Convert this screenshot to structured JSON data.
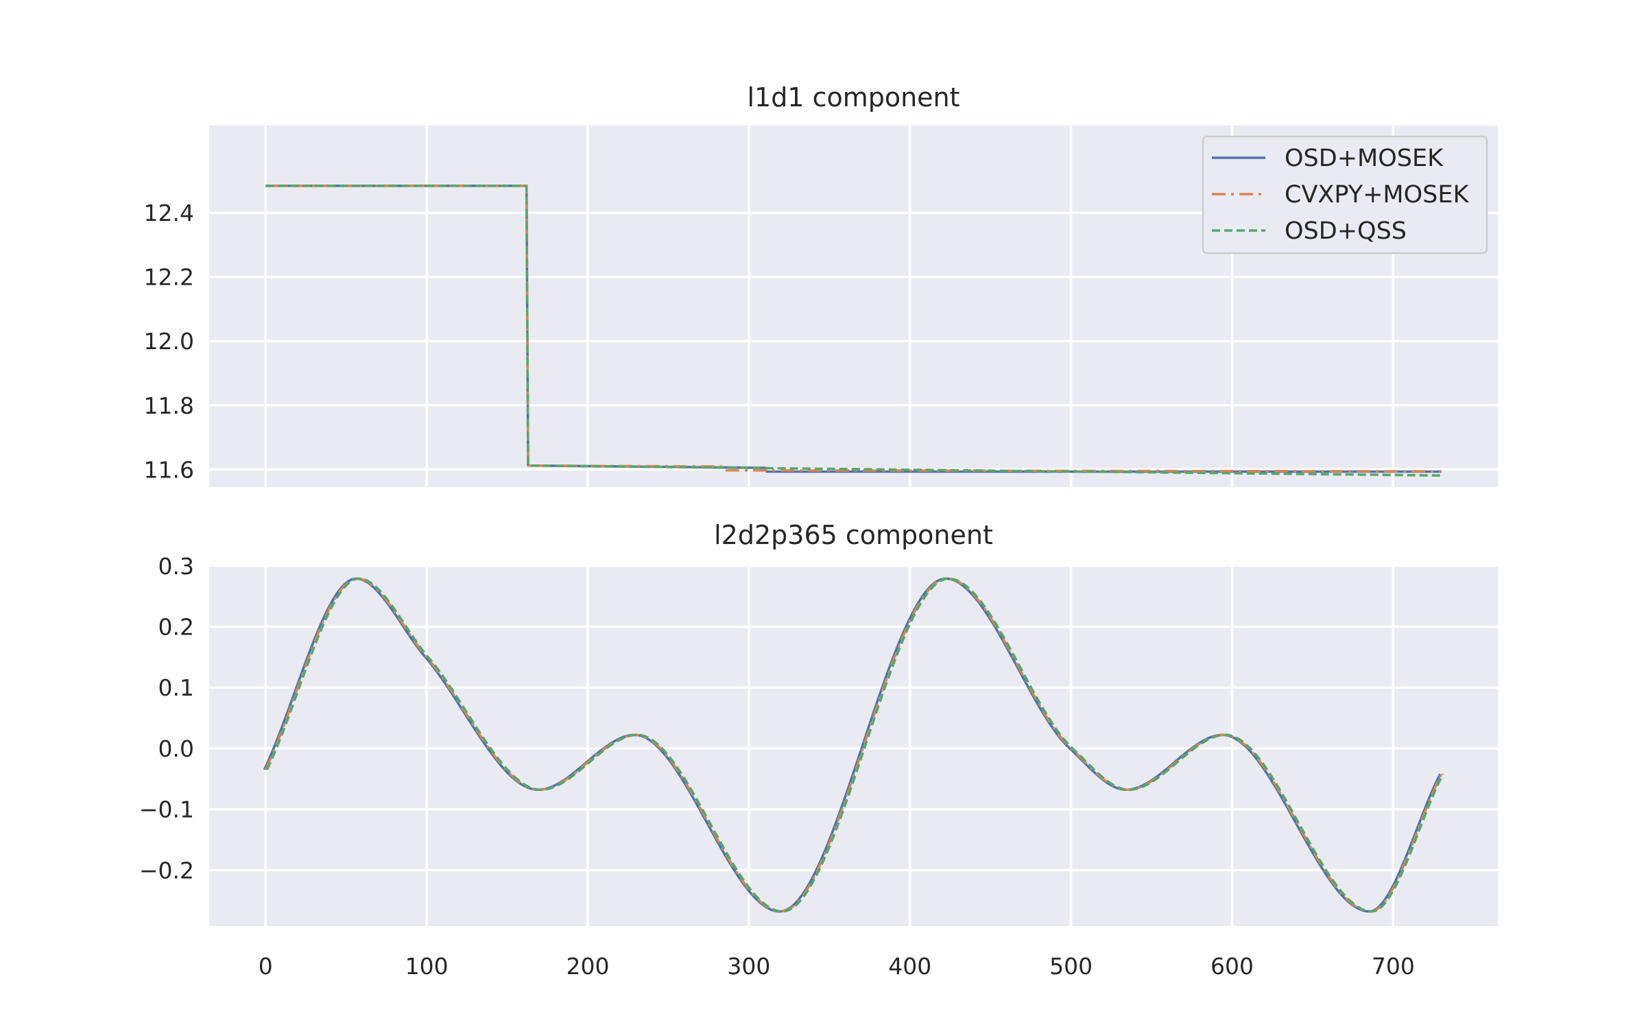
{
  "colors": {
    "background": "#eaeaf2",
    "grid": "#ffffff",
    "osd_mosek": "#4c72b0",
    "cvxpy_mosek": "#dd8452",
    "osd_qss": "#55a868"
  },
  "chart_data": [
    {
      "type": "line",
      "title": "l1d1 component",
      "xlabel": "",
      "ylabel": "",
      "xlim": [
        -35,
        765
      ],
      "ylim": [
        11.545,
        12.672
      ],
      "xticks": [
        0,
        100,
        200,
        300,
        400,
        500,
        600,
        700
      ],
      "show_xtick_labels": false,
      "yticks": [
        11.6,
        11.8,
        12.0,
        12.2,
        12.4
      ],
      "ytick_labels": [
        "11.6",
        "11.8",
        "12.0",
        "12.2",
        "12.4"
      ],
      "grid": true,
      "legend": "top-right",
      "series": [
        {
          "name": "OSD+MOSEK",
          "style": "solid",
          "x": [
            0,
            162,
            163,
            310,
            311,
            730
          ],
          "y": [
            12.484,
            12.484,
            11.612,
            11.605,
            11.593,
            11.593
          ]
        },
        {
          "name": "CVXPY+MOSEK",
          "style": "dashdot",
          "x": [
            0,
            162,
            163,
            283,
            284,
            730
          ],
          "y": [
            12.484,
            12.484,
            11.612,
            11.609,
            11.597,
            11.594
          ]
        },
        {
          "name": "OSD+QSS",
          "style": "dashed",
          "x": [
            0,
            162,
            163,
            730
          ],
          "y": [
            12.484,
            12.484,
            11.612,
            11.581
          ]
        }
      ]
    },
    {
      "type": "line",
      "title": "l2d2p365 component",
      "xlabel": "",
      "ylabel": "",
      "xlim": [
        -35,
        765
      ],
      "ylim": [
        -0.292,
        0.302
      ],
      "xticks": [
        0,
        100,
        200,
        300,
        400,
        500,
        600,
        700
      ],
      "xtick_labels": [
        "0",
        "100",
        "200",
        "300",
        "400",
        "500",
        "600",
        "700"
      ],
      "yticks": [
        -0.2,
        -0.1,
        0.0,
        0.1,
        0.2,
        0.3
      ],
      "ytick_labels": [
        "−0.2",
        "−0.1",
        "0.0",
        "0.1",
        "0.2",
        "0.3"
      ],
      "grid": true,
      "series": [
        {
          "name": "OSD+MOSEK",
          "style": "solid",
          "period": 365,
          "ampLow": 0.02,
          "ampHigh": 0.02
        },
        {
          "name": "CVXPY+MOSEK",
          "style": "dashdot",
          "period": 365,
          "ampLow": 0.0,
          "ampHigh": 0.0
        },
        {
          "name": "OSD+QSS",
          "style": "dashed",
          "period": 365,
          "ampLow": 0.0,
          "ampHigh": 0.02
        }
      ],
      "curve_points": [
        [
          0,
          -0.035
        ],
        [
          57,
          0.279
        ],
        [
          100,
          0.15
        ],
        [
          170,
          -0.068
        ],
        [
          230,
          0.022
        ],
        [
          320,
          -0.268
        ],
        [
          423,
          0.279
        ],
        [
          500,
          0.0
        ],
        [
          535,
          -0.068
        ],
        [
          595,
          0.022
        ],
        [
          686,
          -0.268
        ],
        [
          730,
          -0.042
        ]
      ]
    }
  ]
}
